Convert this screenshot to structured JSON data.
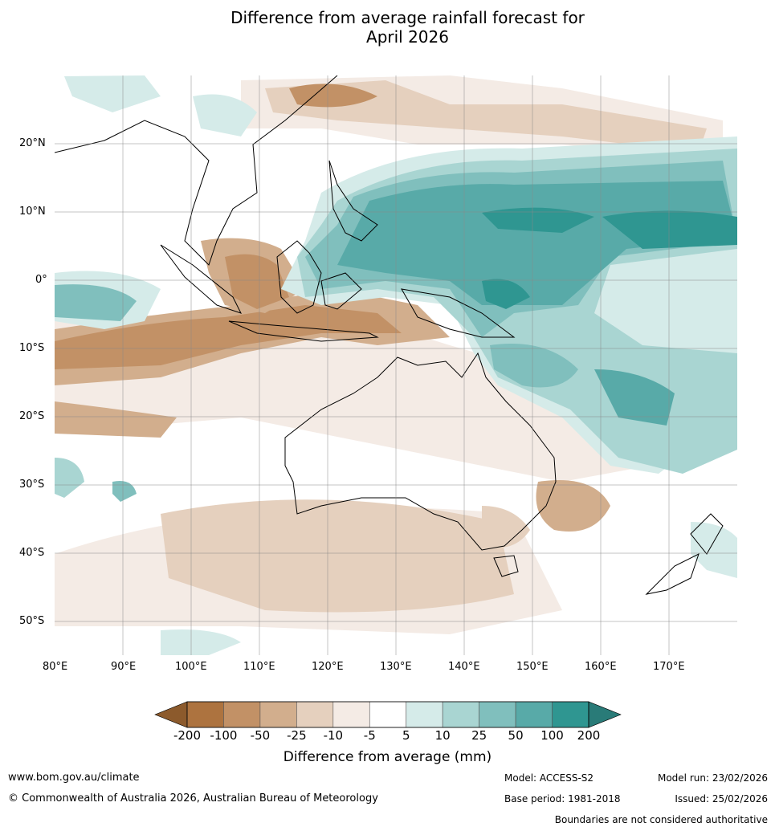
{
  "title": {
    "line1": "Difference from average rainfall forecast for",
    "line2": "April 2026"
  },
  "lat_ticks": [
    "20°N",
    "10°N",
    "0°",
    "10°S",
    "20°S",
    "30°S",
    "40°S",
    "50°S"
  ],
  "lon_ticks": [
    "80°E",
    "90°E",
    "100°E",
    "110°E",
    "120°E",
    "130°E",
    "140°E",
    "150°E",
    "160°E",
    "170°E"
  ],
  "colorbar": {
    "ticks": [
      "-200",
      "-100",
      "-50",
      "-25",
      "-10",
      "-5",
      "5",
      "10",
      "25",
      "50",
      "100",
      "200"
    ],
    "colors": [
      "#8c5a2c",
      "#ad733f",
      "#c29166",
      "#d2ae8d",
      "#e5d0be",
      "#f4ebe5",
      "#ffffff",
      "#d5ebe9",
      "#a9d5d2",
      "#80bfbd",
      "#58aaa8",
      "#2f9691",
      "#297b78"
    ],
    "title": "Difference from average (mm)"
  },
  "footer": {
    "url": "www.bom.gov.au/climate",
    "copyright": "© Commonwealth of Australia 2026, Australian Bureau of Meteorology",
    "model": "Model: ACCESS-S2",
    "base_period": "Base period: 1981-2018",
    "model_run": "Model run: 23/02/2026",
    "issued": "Issued: 25/02/2026",
    "disclaimer": "Boundaries are not considered authoritative"
  }
}
